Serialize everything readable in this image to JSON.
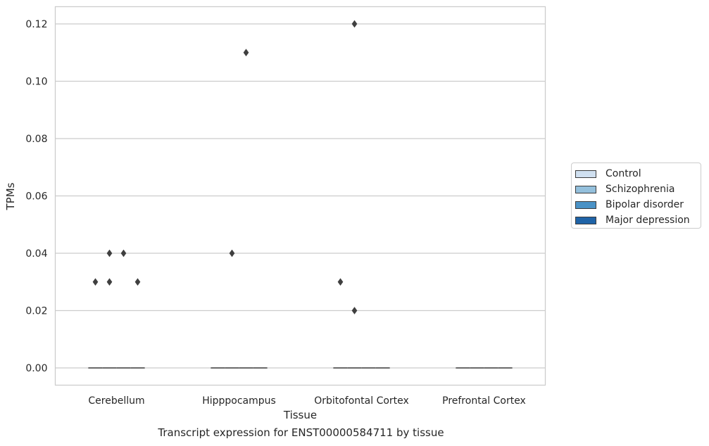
{
  "chart_data": {
    "type": "box",
    "title": "Transcript expression for ENST00000584711 by tissue",
    "xlabel": "Tissue",
    "ylabel": "TPMs",
    "ylim": [
      -0.006,
      0.126
    ],
    "yticks": [
      "0.00",
      "0.02",
      "0.04",
      "0.06",
      "0.08",
      "0.10",
      "0.12"
    ],
    "grid": true,
    "legend_position": "right",
    "categories": [
      "Cerebellum",
      "Hipppocampus",
      "Orbitofontal Cortex",
      "Prefrontal Cortex"
    ],
    "series": [
      {
        "name": "Control",
        "color": "#d0e0f0"
      },
      {
        "name": "Schizophrenia",
        "color": "#94c0dc"
      },
      {
        "name": "Bipolar disorder",
        "color": "#4a92c6"
      },
      {
        "name": "Major depression",
        "color": "#1f63a7"
      }
    ],
    "boxes": [
      {
        "category": "Cerebellum",
        "series": "Control",
        "median": 0,
        "q1": 0,
        "q3": 0,
        "outliers": [
          0.03
        ]
      },
      {
        "category": "Cerebellum",
        "series": "Schizophrenia",
        "median": 0,
        "q1": 0,
        "q3": 0,
        "outliers": [
          0.04,
          0.03
        ]
      },
      {
        "category": "Cerebellum",
        "series": "Bipolar disorder",
        "median": 0,
        "q1": 0,
        "q3": 0,
        "outliers": [
          0.04
        ]
      },
      {
        "category": "Cerebellum",
        "series": "Major depression",
        "median": 0,
        "q1": 0,
        "q3": 0,
        "outliers": [
          0.03
        ]
      },
      {
        "category": "Hipppocampus",
        "series": "Control",
        "median": 0,
        "q1": 0,
        "q3": 0,
        "outliers": []
      },
      {
        "category": "Hipppocampus",
        "series": "Schizophrenia",
        "median": 0,
        "q1": 0,
        "q3": 0,
        "outliers": [
          0.04
        ]
      },
      {
        "category": "Hipppocampus",
        "series": "Bipolar disorder",
        "median": 0,
        "q1": 0,
        "q3": 0,
        "outliers": [
          0.11
        ]
      },
      {
        "category": "Hipppocampus",
        "series": "Major depression",
        "median": 0,
        "q1": 0,
        "q3": 0,
        "outliers": []
      },
      {
        "category": "Orbitofontal Cortex",
        "series": "Control",
        "median": 0,
        "q1": 0,
        "q3": 0,
        "outliers": [
          0.03
        ]
      },
      {
        "category": "Orbitofontal Cortex",
        "series": "Schizophrenia",
        "median": 0,
        "q1": 0,
        "q3": 0,
        "outliers": [
          0.12,
          0.02
        ]
      },
      {
        "category": "Orbitofontal Cortex",
        "series": "Bipolar disorder",
        "median": 0,
        "q1": 0,
        "q3": 0,
        "outliers": []
      },
      {
        "category": "Orbitofontal Cortex",
        "series": "Major depression",
        "median": 0,
        "q1": 0,
        "q3": 0,
        "outliers": []
      },
      {
        "category": "Prefrontal Cortex",
        "series": "Control",
        "median": 0,
        "q1": 0,
        "q3": 0,
        "outliers": []
      },
      {
        "category": "Prefrontal Cortex",
        "series": "Schizophrenia",
        "median": 0,
        "q1": 0,
        "q3": 0,
        "outliers": []
      },
      {
        "category": "Prefrontal Cortex",
        "series": "Bipolar disorder",
        "median": 0,
        "q1": 0,
        "q3": 0,
        "outliers": []
      },
      {
        "category": "Prefrontal Cortex",
        "series": "Major depression",
        "median": 0,
        "q1": 0,
        "q3": 0,
        "outliers": []
      }
    ]
  }
}
